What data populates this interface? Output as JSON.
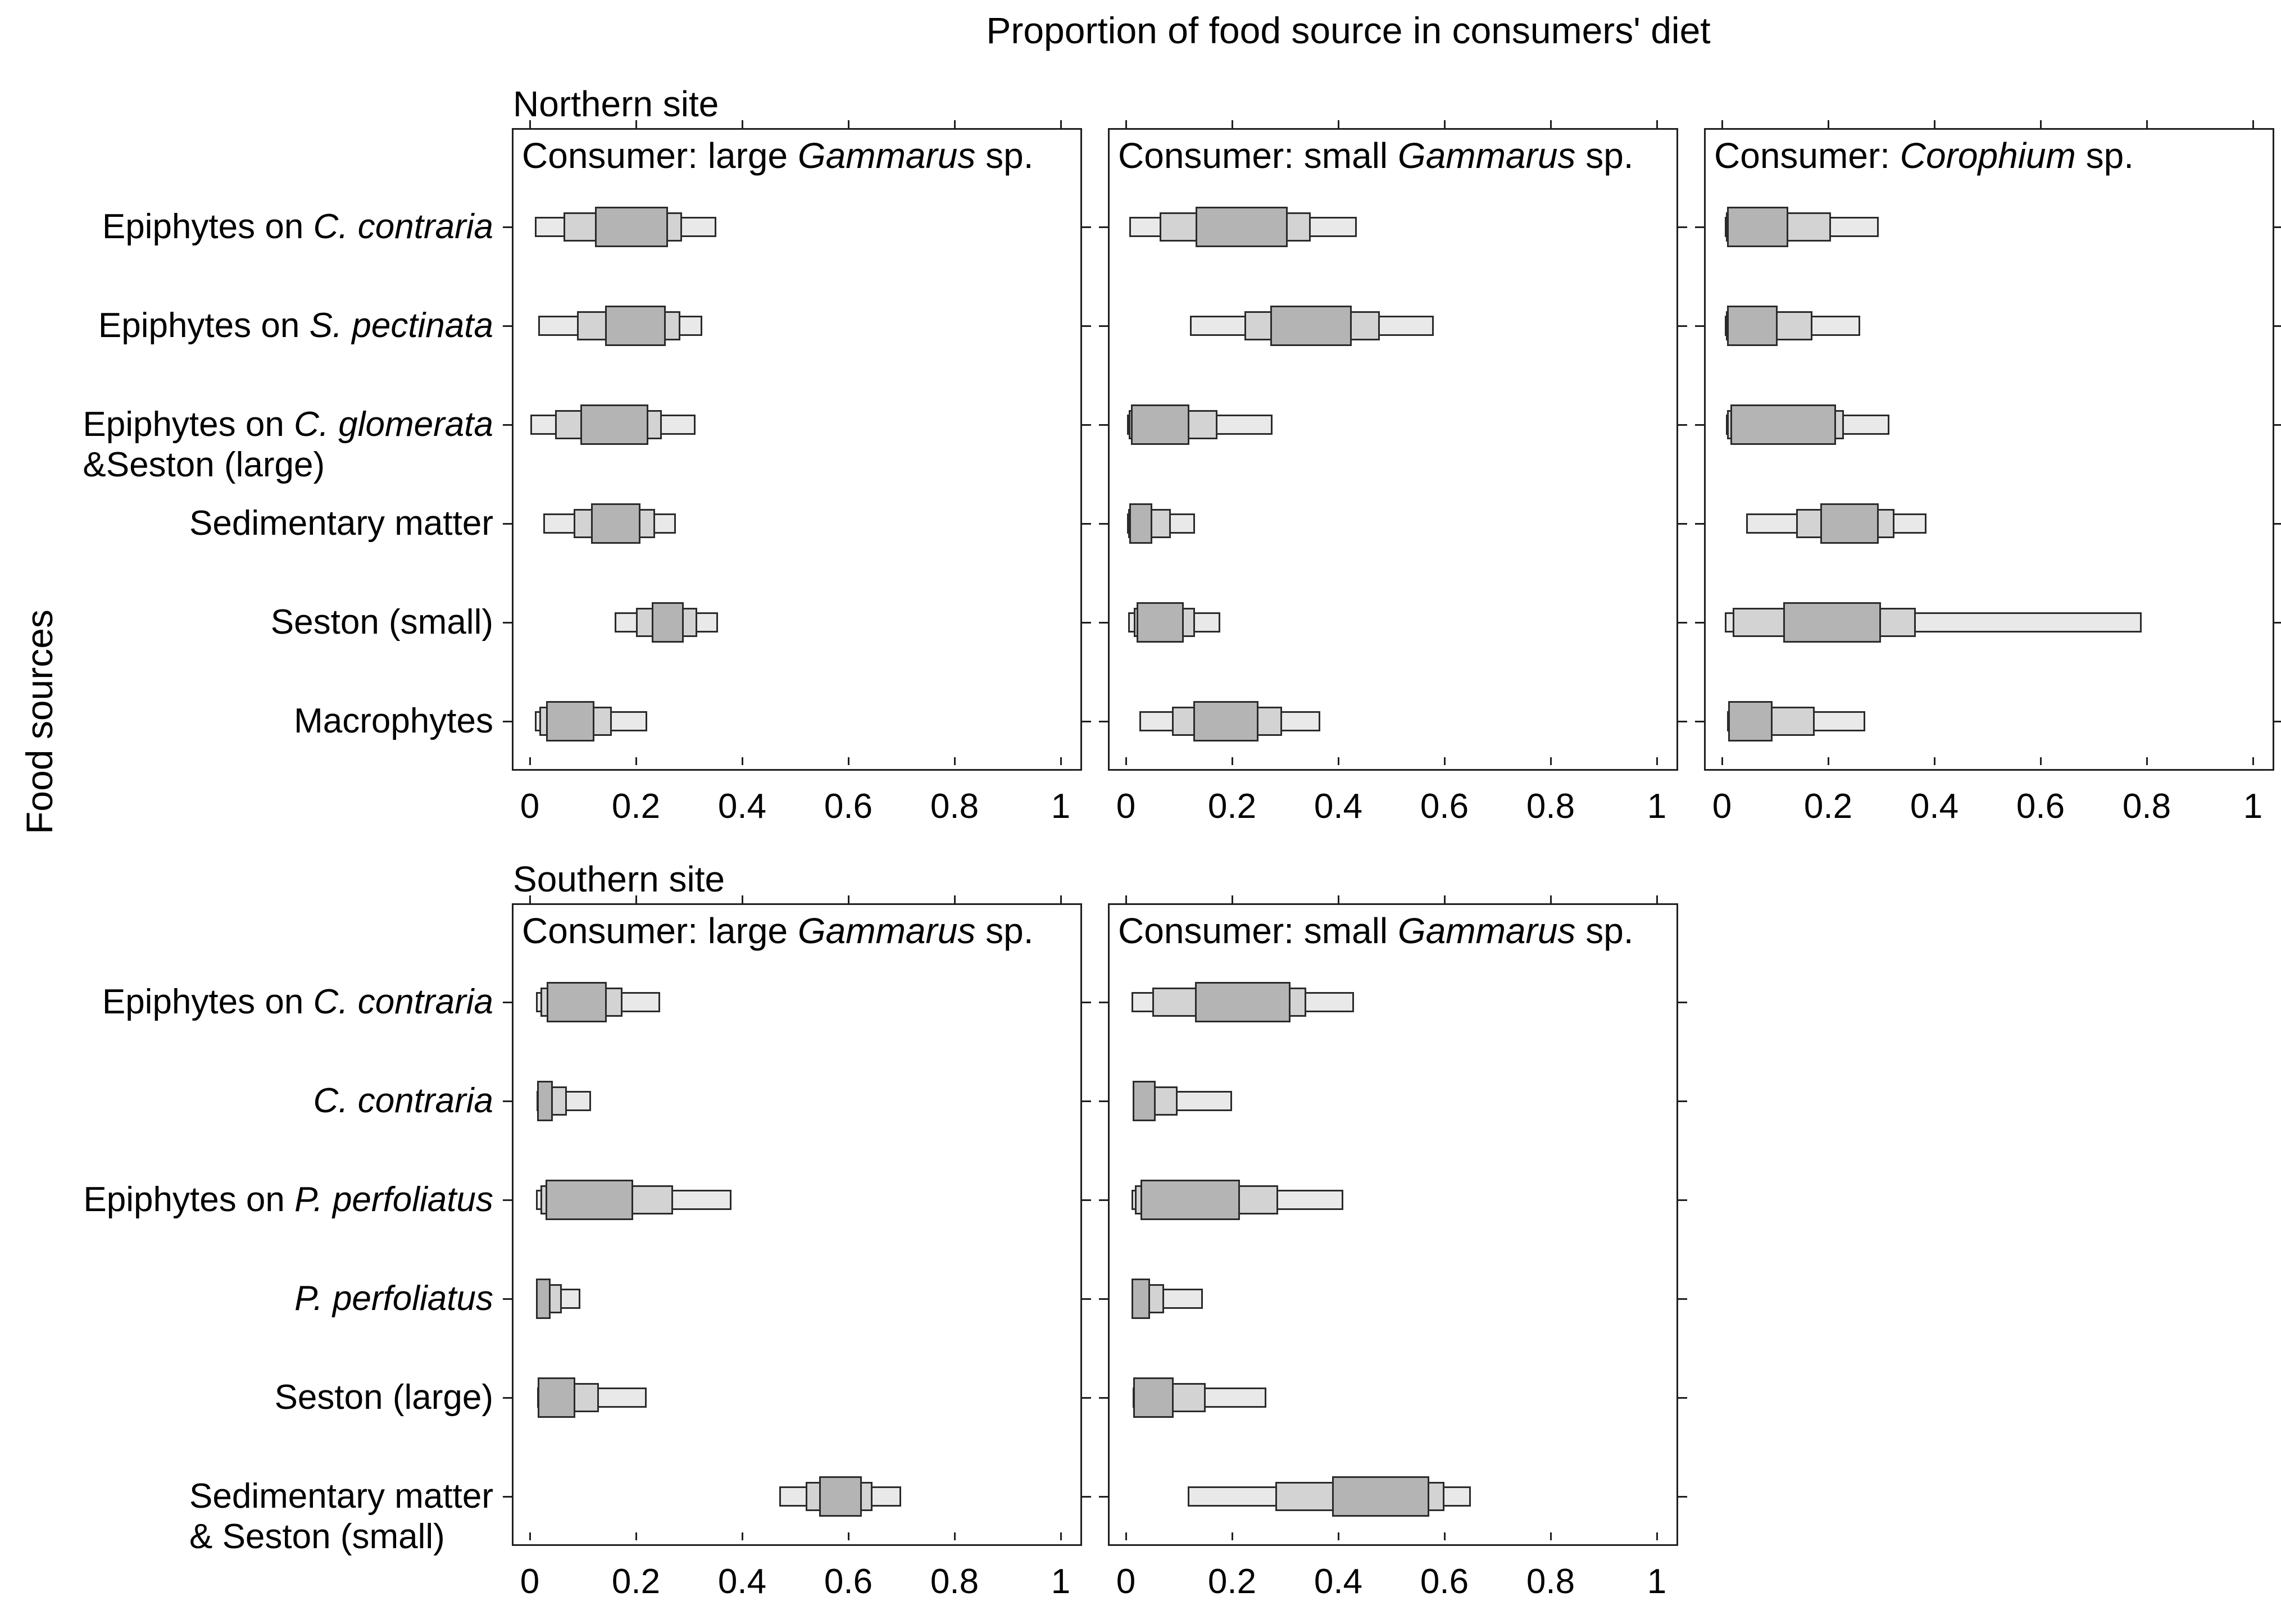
{
  "title": "Proportion of food source in consumers' diet",
  "ylabel": "Food sources",
  "axis": {
    "range": [
      0,
      1
    ],
    "tick_values": [
      0,
      0.2,
      0.4,
      0.6,
      0.8,
      1
    ],
    "tick_labels": [
      "0",
      "0.2",
      "0.4",
      "0.6",
      "0.8",
      "1"
    ]
  },
  "style": {
    "outer_fill": "#e9e9e9",
    "mid_fill": "#d3d3d3",
    "inner_fill": "#b4b4b4",
    "box_border": "#2b2b2b",
    "panel_border": "#1f1f1f",
    "text_color": "#000000"
  },
  "chart_data": {
    "type": "nested-interval-boxplot",
    "title": "Proportion of food source in consumers' diet",
    "xlabel": "",
    "ylabel": "Food sources",
    "xlim": [
      0,
      1
    ],
    "interval_levels": [
      "inner (dark, widest bar)",
      "mid (medium grey)",
      "outer (light grey, full range)"
    ],
    "groups": [
      {
        "site": "Northern site",
        "categories": [
          {
            "lines": [
              [
                {
                  "t": "Epiphytes on ",
                  "i": false
                },
                {
                  "t": "C. contraria",
                  "i": true
                }
              ]
            ]
          },
          {
            "lines": [
              [
                {
                  "t": "Epiphytes on ",
                  "i": false
                },
                {
                  "t": "S. pectinata",
                  "i": true
                }
              ]
            ]
          },
          {
            "lines": [
              [
                {
                  "t": "Epiphytes on ",
                  "i": false
                },
                {
                  "t": "C. glomerata",
                  "i": true
                }
              ],
              [
                {
                  "t": "&Seston (large)",
                  "i": false
                }
              ]
            ]
          },
          {
            "lines": [
              [
                {
                  "t": "Sedimentary matter",
                  "i": false
                }
              ]
            ]
          },
          {
            "lines": [
              [
                {
                  "t": "Seston (small)",
                  "i": false
                }
              ]
            ]
          },
          {
            "lines": [
              [
                {
                  "t": "Macrophytes",
                  "i": false
                }
              ]
            ]
          }
        ],
        "panels": [
          {
            "consumer_segments": [
              {
                "t": "Consumer: large ",
                "i": false
              },
              {
                "t": "Gammarus",
                "i": true
              },
              {
                "t": " sp.",
                "i": false
              }
            ],
            "rows": [
              {
                "outer": [
                  0.01,
                  0.351
                ],
                "mid": [
                  0.063,
                  0.287
                ],
                "inner": [
                  0.123,
                  0.26
                ]
              },
              {
                "outer": [
                  0.016,
                  0.325
                ],
                "mid": [
                  0.089,
                  0.284
                ],
                "inner": [
                  0.142,
                  0.256
                ]
              },
              {
                "outer": [
                  0.001,
                  0.312
                ],
                "mid": [
                  0.048,
                  0.249
                ],
                "inner": [
                  0.095,
                  0.223
                ]
              },
              {
                "outer": [
                  0.025,
                  0.275
                ],
                "mid": [
                  0.083,
                  0.236
                ],
                "inner": [
                  0.115,
                  0.208
                ]
              },
              {
                "outer": [
                  0.16,
                  0.355
                ],
                "mid": [
                  0.2,
                  0.315
                ],
                "inner": [
                  0.23,
                  0.29
                ]
              },
              {
                "outer": [
                  0.009,
                  0.221
                ],
                "mid": [
                  0.018,
                  0.155
                ],
                "inner": [
                  0.031,
                  0.122
                ]
              }
            ]
          },
          {
            "consumer_segments": [
              {
                "t": "Consumer: small ",
                "i": false
              },
              {
                "t": "Gammarus",
                "i": true
              },
              {
                "t": " sp.",
                "i": false
              }
            ],
            "rows": [
              {
                "outer": [
                  0.006,
                  0.435
                ],
                "mid": [
                  0.064,
                  0.348
                ],
                "inner": [
                  0.131,
                  0.305
                ]
              },
              {
                "outer": [
                  0.121,
                  0.58
                ],
                "mid": [
                  0.223,
                  0.478
                ],
                "inner": [
                  0.272,
                  0.425
                ]
              },
              {
                "outer": [
                  0.002,
                  0.276
                ],
                "mid": [
                  0.005,
                  0.173
                ],
                "inner": [
                  0.009,
                  0.12
                ]
              },
              {
                "outer": [
                  0.002,
                  0.13
                ],
                "mid": [
                  0.004,
                  0.085
                ],
                "inner": [
                  0.006,
                  0.05
                ]
              },
              {
                "outer": [
                  0.004,
                  0.178
                ],
                "mid": [
                  0.015,
                  0.13
                ],
                "inner": [
                  0.02,
                  0.109
                ]
              },
              {
                "outer": [
                  0.025,
                  0.366
                ],
                "mid": [
                  0.087,
                  0.294
                ],
                "inner": [
                  0.127,
                  0.25
                ]
              }
            ]
          },
          {
            "consumer_segments": [
              {
                "t": "Consumer: ",
                "i": false
              },
              {
                "t": "Corophium",
                "i": true
              },
              {
                "t": " sp.",
                "i": false
              }
            ],
            "rows": [
              {
                "outer": [
                  0.005,
                  0.295
                ],
                "mid": [
                  0.007,
                  0.205
                ],
                "inner": [
                  0.01,
                  0.125
                ]
              },
              {
                "outer": [
                  0.005,
                  0.26
                ],
                "mid": [
                  0.007,
                  0.17
                ],
                "inner": [
                  0.01,
                  0.105
                ]
              },
              {
                "outer": [
                  0.007,
                  0.315
                ],
                "mid": [
                  0.01,
                  0.23
                ],
                "inner": [
                  0.016,
                  0.215
                ]
              },
              {
                "outer": [
                  0.045,
                  0.385
                ],
                "mid": [
                  0.14,
                  0.325
                ],
                "inner": [
                  0.185,
                  0.295
                ]
              },
              {
                "outer": [
                  0.005,
                  0.79
                ],
                "mid": [
                  0.02,
                  0.365
                ],
                "inner": [
                  0.115,
                  0.3
                ]
              },
              {
                "outer": [
                  0.01,
                  0.27
                ],
                "mid": [
                  0.012,
                  0.175
                ],
                "inner": [
                  0.012,
                  0.095
                ]
              }
            ]
          }
        ]
      },
      {
        "site": "Southern site",
        "categories": [
          {
            "lines": [
              [
                {
                  "t": "Epiphytes on ",
                  "i": false
                },
                {
                  "t": "C. contraria",
                  "i": true
                }
              ]
            ]
          },
          {
            "lines": [
              [
                {
                  "t": "C. contraria",
                  "i": true
                }
              ]
            ]
          },
          {
            "lines": [
              [
                {
                  "t": "Epiphytes on ",
                  "i": false
                },
                {
                  "t": "P. perfoliatus",
                  "i": true
                }
              ]
            ]
          },
          {
            "lines": [
              [
                {
                  "t": "P. perfoliatus",
                  "i": true
                }
              ]
            ]
          },
          {
            "lines": [
              [
                {
                  "t": "Seston (large)",
                  "i": false
                }
              ]
            ]
          },
          {
            "lines": [
              [
                {
                  "t": "Sedimentary matter",
                  "i": false
                }
              ],
              [
                {
                  "t": "& Seston (small)",
                  "i": false
                }
              ]
            ]
          }
        ],
        "panels": [
          {
            "consumer_segments": [
              {
                "t": "Consumer: large ",
                "i": false
              },
              {
                "t": "Gammarus",
                "i": true
              },
              {
                "t": " sp.",
                "i": false
              }
            ],
            "rows": [
              {
                "outer": [
                  0.012,
                  0.245
                ],
                "mid": [
                  0.02,
                  0.175
                ],
                "inner": [
                  0.032,
                  0.145
                ]
              },
              {
                "outer": [
                  0.013,
                  0.115
                ],
                "mid": [
                  0.014,
                  0.07
                ],
                "inner": [
                  0.014,
                  0.043
                ]
              },
              {
                "outer": [
                  0.012,
                  0.38
                ],
                "mid": [
                  0.02,
                  0.27
                ],
                "inner": [
                  0.03,
                  0.195
                ]
              },
              {
                "outer": [
                  0.012,
                  0.095
                ],
                "mid": [
                  0.012,
                  0.06
                ],
                "inner": [
                  0.012,
                  0.039
                ]
              },
              {
                "outer": [
                  0.014,
                  0.22
                ],
                "mid": [
                  0.015,
                  0.13
                ],
                "inner": [
                  0.015,
                  0.086
                ]
              },
              {
                "outer": [
                  0.47,
                  0.7
                ],
                "mid": [
                  0.52,
                  0.645
                ],
                "inner": [
                  0.545,
                  0.625
                ]
              }
            ]
          },
          {
            "consumer_segments": [
              {
                "t": "Consumer: small ",
                "i": false
              },
              {
                "t": "Gammarus",
                "i": true
              },
              {
                "t": " sp.",
                "i": false
              }
            ],
            "rows": [
              {
                "outer": [
                  0.011,
                  0.43
                ],
                "mid": [
                  0.05,
                  0.34
                ],
                "inner": [
                  0.13,
                  0.31
                ]
              },
              {
                "outer": [
                  0.013,
                  0.2
                ],
                "mid": [
                  0.013,
                  0.097
                ],
                "inner": [
                  0.013,
                  0.056
                ]
              },
              {
                "outer": [
                  0.011,
                  0.41
                ],
                "mid": [
                  0.017,
                  0.287
                ],
                "inner": [
                  0.027,
                  0.215
                ]
              },
              {
                "outer": [
                  0.011,
                  0.145
                ],
                "mid": [
                  0.011,
                  0.072
                ],
                "inner": [
                  0.011,
                  0.045
                ]
              },
              {
                "outer": [
                  0.013,
                  0.265
                ],
                "mid": [
                  0.014,
                  0.15
                ],
                "inner": [
                  0.014,
                  0.09
                ]
              },
              {
                "outer": [
                  0.116,
                  0.65
                ],
                "mid": [
                  0.282,
                  0.6
                ],
                "inner": [
                  0.388,
                  0.571
                ]
              }
            ]
          }
        ]
      }
    ]
  }
}
